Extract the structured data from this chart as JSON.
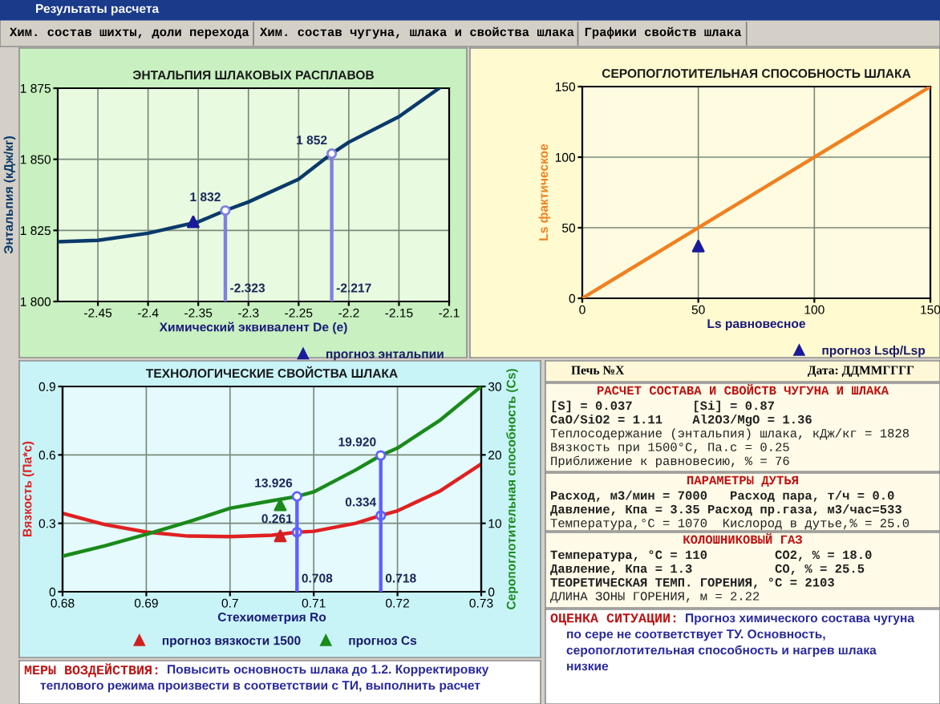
{
  "chart_data": [
    {
      "type": "other",
      "title": "Результаты расчета",
      "annotations": [
        "Хим. состав шихты, доли перехода",
        "Хим. состав чугуна, шлака и свойства шлака",
        "Графики свойств шлака"
      ]
    },
    {
      "type": "line",
      "title": "ЭНТАЛЬПИЯ ШЛАКОВЫХ РАСПЛАВОВ",
      "xlabel": "Химический эквивалент De (e)",
      "ylabel": "Энтальпия (кДж/кг)",
      "xlim": [
        -2.49,
        -2.1
      ],
      "ylim": [
        1800,
        1875
      ],
      "xticks": [
        -2.45,
        -2.4,
        -2.35,
        -2.3,
        -2.25,
        -2.2,
        -2.15,
        -2.1
      ],
      "yticks": [
        {
          "value": 1800,
          "label": "1 800"
        },
        {
          "value": 1825,
          "label": "1 825"
        },
        {
          "value": 1850,
          "label": "1 850"
        },
        {
          "value": 1875,
          "label": "1 875"
        }
      ],
      "grid": true,
      "legend": "bottom right",
      "series": [
        {
          "color": "#0a3a6a",
          "x": [
            -2.49,
            -2.45,
            -2.4,
            -2.35,
            -2.323,
            -2.3,
            -2.25,
            -2.217,
            -2.2,
            -2.15,
            -2.11
          ],
          "values": [
            1821,
            1821.5,
            1824,
            1828,
            1832,
            1835,
            1843,
            1852,
            1856,
            1865,
            1875
          ]
        },
        {
          "color": "#8080e0",
          "x": [
            -2.323,
            -2.323
          ],
          "values": [
            1800,
            1832
          ]
        },
        {
          "color": "#8080e0",
          "x": [
            -2.217,
            -2.217
          ],
          "values": [
            1800,
            1852
          ]
        },
        {
          "type": "scatter",
          "marker": "circle",
          "color": "#8080e0",
          "x": [
            -2.323,
            -2.217
          ],
          "values": [
            1832,
            1852
          ],
          "value_labels": [
            "1 832",
            "1 852"
          ]
        },
        {
          "type": "scatter",
          "marker": "triangle",
          "name": "прогноз энтальпии",
          "color": "#1a1a9a",
          "x": [
            -2.355
          ],
          "values": [
            1828
          ]
        }
      ],
      "annotations": [
        {
          "text": "-2.323",
          "x": -2.323,
          "y": 1800
        },
        {
          "text": "-2.217",
          "x": -2.217,
          "y": 1800
        }
      ]
    },
    {
      "type": "line",
      "title": "СЕРОПОГЛОТИТЕЛЬНАЯ СПОСОБНОСТЬ ШЛАКА",
      "xlabel": "Ls равновесное",
      "ylabel": "Ls фактическое",
      "xlim": [
        0,
        150
      ],
      "ylim": [
        0,
        150
      ],
      "xticks": [
        0,
        50,
        100,
        150
      ],
      "yticks": [
        0,
        50,
        100,
        150
      ],
      "grid": true,
      "legend": "bottom right",
      "series": [
        {
          "color": "#f08020",
          "x": [
            0,
            150
          ],
          "values": [
            0,
            150
          ]
        },
        {
          "type": "scatter",
          "marker": "triangle",
          "name": "прогноз Lsф/Lsр",
          "color": "#1a1a9a",
          "x": [
            50
          ],
          "values": [
            37
          ]
        }
      ]
    },
    {
      "type": "line",
      "title": "ТЕХНОЛОГИЧЕСКИЕ СВОЙСТВА ШЛАКА",
      "xlabel": "Стехиометрия Ro",
      "ylabel": "Вязкость (Па*с)",
      "y2label": "Серопоглотительная способность (Cs)",
      "xlim": [
        0.68,
        0.73
      ],
      "ylim": [
        0,
        0.9
      ],
      "y2lim": [
        0,
        30
      ],
      "xticks": [
        0.68,
        0.69,
        0.7,
        0.71,
        0.72,
        0.73
      ],
      "yticks": [
        0,
        0.3,
        0.6,
        0.9
      ],
      "y2ticks": [
        0,
        10,
        20,
        30
      ],
      "grid": true,
      "legend": "bottom",
      "series": [
        {
          "color": "#e02020",
          "x": [
            0.68,
            0.685,
            0.69,
            0.695,
            0.7,
            0.705,
            0.708,
            0.71,
            0.715,
            0.718,
            0.72,
            0.725,
            0.73
          ],
          "values": [
            0.344,
            0.295,
            0.262,
            0.244,
            0.242,
            0.248,
            0.261,
            0.265,
            0.3,
            0.334,
            0.355,
            0.44,
            0.56
          ]
        },
        {
          "color": "#1a8a1a",
          "axis": "y2",
          "x": [
            0.68,
            0.685,
            0.69,
            0.695,
            0.7,
            0.705,
            0.708,
            0.71,
            0.715,
            0.718,
            0.72,
            0.725,
            0.73
          ],
          "values": [
            5.2,
            6.7,
            8.4,
            10.2,
            12.2,
            13.3,
            13.926,
            14.6,
            17.8,
            19.92,
            21,
            25,
            30
          ]
        },
        {
          "color": "#6060ff",
          "axis": "y2",
          "x": [
            0.708,
            0.708
          ],
          "values": [
            0,
            13.926
          ]
        },
        {
          "color": "#6060ff",
          "axis": "y2",
          "x": [
            0.718,
            0.718
          ],
          "values": [
            0,
            19.92
          ]
        },
        {
          "type": "scatter",
          "marker": "circle",
          "color": "#6060ff",
          "axis": "y2",
          "x": [
            0.708,
            0.718
          ],
          "values": [
            13.926,
            19.92
          ],
          "value_labels": [
            "13.926",
            "19.920"
          ]
        },
        {
          "type": "scatter",
          "marker": "circle",
          "color": "#6060ff",
          "x": [
            0.708,
            0.718
          ],
          "values": [
            0.261,
            0.334
          ],
          "value_labels": [
            "0.261",
            "0.334"
          ]
        },
        {
          "type": "scatter",
          "marker": "triangle",
          "name": "прогноз вязкости 1500",
          "color": "#d02020",
          "x": [
            0.706
          ],
          "values": [
            0.245
          ]
        },
        {
          "type": "scatter",
          "marker": "triangle",
          "name": "прогноз Cs",
          "axis": "y2",
          "color": "#1a8a1a",
          "x": [
            0.706
          ],
          "values": [
            12.7
          ]
        }
      ],
      "annotations": [
        {
          "text": "0.708",
          "x": 0.708,
          "y": 0
        },
        {
          "text": "0.718",
          "x": 0.718,
          "y": 0
        }
      ]
    },
    {
      "type": "other",
      "title": "Печь №X",
      "subtitle": "Дата: ДДММГГГГ"
    },
    {
      "type": "other",
      "title": "РАСЧЕТ СОСТАВА И СВОЙСТВ ЧУГУНА И ШЛАКА",
      "annotations": [
        "[S] = 0.037        [Si] = 0.87",
        "CaO/SiO2 = 1.11    Al2O3/MgO = 1.36",
        "Теплосодержание (энтальпия) шлака, кДж/кг = 1828",
        "Вязкость при 1500°С, Па.с = 0.25",
        "Приближение к равновесию, % = 76"
      ]
    },
    {
      "type": "other",
      "title": "ПАРАМЕТРЫ ДУТЬЯ",
      "annotations": [
        "Расход, м3/мин = 7000   Расход пара, т/ч = 0.0",
        "Давление, Кпа = 3.35 Расход пр.газа, м3/час=533",
        "Температура,°С = 1070  Кислород в дутье,% = 25.0"
      ]
    },
    {
      "type": "other",
      "title": "КОЛОШНИКОВЫЙ ГАЗ",
      "annotations": [
        "Температура, °С = 110         CO2, % = 18.0",
        "Давление, Кпа = 1.3           CO, % = 25.5",
        "ТЕОРЕТИЧЕСКАЯ ТЕМП. ГОРЕНИЯ, °С = 2103",
        "ДЛИНА ЗОНЫ ГОРЕНИЯ, м = 2.22"
      ]
    },
    {
      "type": "other",
      "title": "ОЦЕНКА СИТУАЦИИ:",
      "annotations": [
        "Прогноз химического состава чугуна",
        "по сере не соответствует ТУ. Основность,",
        "серопоглотительная способность и нагрев шлака",
        "низкие"
      ]
    },
    {
      "type": "other",
      "title": "МЕРЫ ВОЗДЕЙСТВИЯ:",
      "annotations": [
        "Повысить основность шлака до 1.2. Корректировку",
        "теплового режима произвести в соответствии с ТИ, выполнить расчет"
      ]
    }
  ]
}
